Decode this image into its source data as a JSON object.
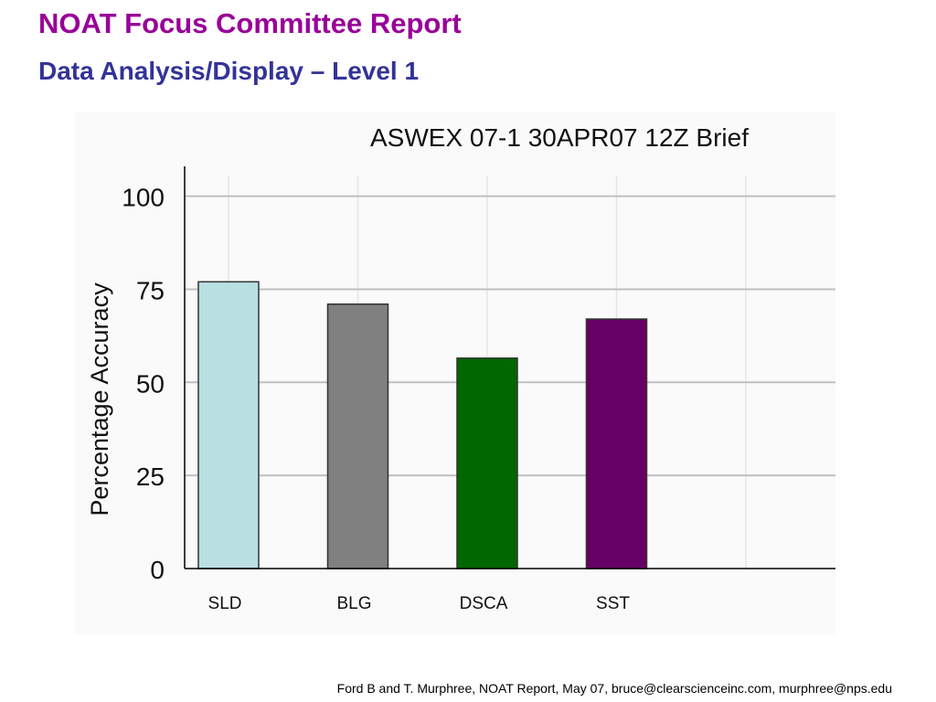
{
  "slide": {
    "title": "NOAT Focus Committee Report",
    "subtitle": "Data Analysis/Display – Level 1",
    "footer": "Ford B and T. Murphree, NOAT Report, May 07, bruce@clearscienceinc.com, murphree@nps.edu"
  },
  "colors": {
    "title": "#990099",
    "subtitle": "#333399",
    "grid": "#c0c0c0",
    "axis": "#000000"
  },
  "chart_data": {
    "type": "bar",
    "title": "ASWEX 07-1 30APR07 12Z Brief",
    "xlabel": "",
    "ylabel": "Percentage Accuracy",
    "categories": [
      "SLD",
      "BLG",
      "DSCA",
      "SST"
    ],
    "values": [
      77,
      71,
      56.5,
      67
    ],
    "bar_colors": [
      "#b9dfe3",
      "#808080",
      "#006600",
      "#660066"
    ],
    "ylim": [
      0,
      108
    ],
    "yticks": [
      "0",
      "25",
      "50",
      "75",
      "100"
    ],
    "grid": true,
    "legend": "none"
  }
}
